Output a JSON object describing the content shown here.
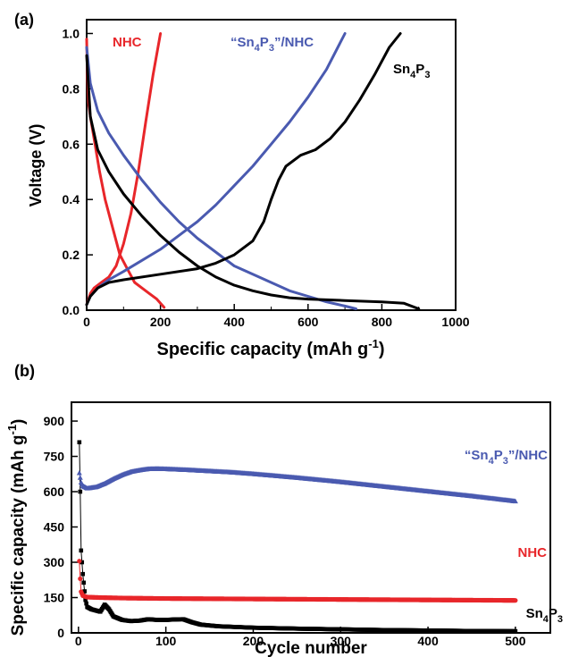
{
  "chart_data": [
    {
      "type": "line",
      "panel_label": "(a)",
      "xlabel": "Specific capacity (mAh g",
      "xlabel_sup": "-1",
      "xlabel_end": ")",
      "ylabel": "Voltage (V)",
      "xlim": [
        0,
        1000
      ],
      "ylim": [
        0,
        1.05
      ],
      "x_ticks": [
        "0",
        "200",
        "400",
        "600",
        "800",
        "1000"
      ],
      "x_tick_values": [
        0,
        200,
        400,
        600,
        800,
        1000
      ],
      "y_ticks": [
        "0.0",
        "0.2",
        "0.4",
        "0.6",
        "0.8",
        "1.0"
      ],
      "y_tick_values": [
        0,
        0.2,
        0.4,
        0.6,
        0.8,
        1.0
      ],
      "series": [
        {
          "name": "NHC",
          "label_parts": [
            {
              "t": "NHC"
            }
          ],
          "color": "#e8262a",
          "curves": [
            {
              "x": [
                0,
                2,
                5,
                10,
                20,
                35,
                50,
                70,
                90,
                110,
                130,
                150,
                170,
                190,
                210
              ],
              "y": [
                0.98,
                0.85,
                0.75,
                0.7,
                0.62,
                0.5,
                0.4,
                0.3,
                0.2,
                0.15,
                0.1,
                0.08,
                0.06,
                0.04,
                0.01
              ]
            },
            {
              "x": [
                0,
                5,
                10,
                20,
                40,
                60,
                80,
                100,
                120,
                140,
                160,
                180,
                200
              ],
              "y": [
                0.02,
                0.04,
                0.06,
                0.08,
                0.1,
                0.12,
                0.16,
                0.24,
                0.35,
                0.5,
                0.68,
                0.85,
                1.0
              ]
            }
          ]
        },
        {
          "name": "“Sn4P3”/NHC",
          "label_parts": [
            {
              "t": "“Sn"
            },
            {
              "t": "4",
              "sub": true
            },
            {
              "t": "P"
            },
            {
              "t": "3",
              "sub": true
            },
            {
              "t": "”/NHC"
            }
          ],
          "color": "#4a5ab0",
          "curves": [
            {
              "x": [
                0,
                10,
                30,
                60,
                100,
                150,
                200,
                250,
                300,
                350,
                400,
                450,
                500,
                550,
                600,
                650,
                700,
                730
              ],
              "y": [
                0.95,
                0.82,
                0.72,
                0.64,
                0.56,
                0.47,
                0.39,
                0.32,
                0.26,
                0.21,
                0.16,
                0.13,
                0.1,
                0.07,
                0.05,
                0.03,
                0.015,
                0.005
              ]
            },
            {
              "x": [
                0,
                10,
                30,
                60,
                100,
                150,
                200,
                250,
                300,
                350,
                400,
                450,
                500,
                550,
                600,
                650,
                700
              ],
              "y": [
                0.02,
                0.05,
                0.08,
                0.11,
                0.14,
                0.18,
                0.22,
                0.27,
                0.32,
                0.38,
                0.45,
                0.52,
                0.6,
                0.68,
                0.77,
                0.87,
                1.0
              ]
            }
          ]
        },
        {
          "name": "Sn4P3",
          "label_parts": [
            {
              "t": "Sn"
            },
            {
              "t": "4",
              "sub": true
            },
            {
              "t": "P"
            },
            {
              "t": "3",
              "sub": true
            }
          ],
          "color": "#000000",
          "curves": [
            {
              "x": [
                0,
                10,
                30,
                60,
                100,
                150,
                200,
                250,
                300,
                350,
                400,
                450,
                500,
                550,
                600,
                700,
                800,
                860,
                900
              ],
              "y": [
                0.92,
                0.7,
                0.58,
                0.5,
                0.42,
                0.34,
                0.27,
                0.21,
                0.16,
                0.12,
                0.09,
                0.07,
                0.055,
                0.045,
                0.04,
                0.035,
                0.03,
                0.025,
                0.005
              ]
            },
            {
              "x": [
                0,
                10,
                30,
                60,
                100,
                200,
                300,
                350,
                400,
                450,
                480,
                500,
                520,
                540,
                580,
                620,
                660,
                700,
                740,
                780,
                820,
                850
              ],
              "y": [
                0.02,
                0.05,
                0.08,
                0.1,
                0.11,
                0.13,
                0.15,
                0.17,
                0.2,
                0.25,
                0.32,
                0.4,
                0.47,
                0.52,
                0.56,
                0.58,
                0.62,
                0.68,
                0.76,
                0.85,
                0.95,
                1.0
              ]
            }
          ]
        }
      ]
    },
    {
      "type": "scatter",
      "panel_label": "(b)",
      "xlabel": "Cycle number",
      "ylabel": "Specific capacity (mAh g",
      "ylabel_sup": "-1",
      "ylabel_end": ")",
      "xlim": [
        -8,
        540
      ],
      "ylim": [
        0,
        980
      ],
      "x_ticks": [
        "0",
        "100",
        "200",
        "300",
        "400",
        "500"
      ],
      "x_tick_values": [
        0,
        100,
        200,
        300,
        400,
        500
      ],
      "y_ticks": [
        "0",
        "150",
        "300",
        "450",
        "600",
        "750",
        "900"
      ],
      "y_tick_values": [
        0,
        150,
        300,
        450,
        600,
        750,
        900
      ],
      "series": [
        {
          "name": "“Sn4P3”/NHC",
          "label_parts": [
            {
              "t": "“Sn"
            },
            {
              "t": "4",
              "sub": true
            },
            {
              "t": "P"
            },
            {
              "t": "3",
              "sub": true
            },
            {
              "t": "”/NHC"
            }
          ],
          "color": "#4a5ab0",
          "marker": "triangle",
          "x": [
            1,
            2,
            3,
            5,
            10,
            20,
            30,
            40,
            50,
            60,
            70,
            80,
            90,
            100,
            125,
            150,
            175,
            200,
            250,
            300,
            350,
            400,
            450,
            500
          ],
          "y": [
            680,
            660,
            640,
            625,
            615,
            620,
            635,
            655,
            672,
            685,
            692,
            697,
            698,
            697,
            693,
            688,
            683,
            676,
            660,
            642,
            622,
            602,
            582,
            560
          ]
        },
        {
          "name": "NHC",
          "label_parts": [
            {
              "t": "NHC"
            }
          ],
          "color": "#e8262a",
          "marker": "circle",
          "x": [
            1,
            2,
            3,
            5,
            10,
            25,
            50,
            100,
            150,
            200,
            250,
            300,
            350,
            400,
            450,
            500
          ],
          "y": [
            305,
            230,
            175,
            158,
            152,
            150,
            148,
            146,
            145,
            144,
            143,
            142,
            141,
            140,
            139,
            138
          ]
        },
        {
          "name": "Sn4P3",
          "label_parts": [
            {
              "t": "Sn"
            },
            {
              "t": "4",
              "sub": true
            },
            {
              "t": "P"
            },
            {
              "t": "3",
              "sub": true
            }
          ],
          "color": "#000000",
          "marker": "square",
          "x": [
            1,
            2,
            3,
            5,
            8,
            10,
            15,
            20,
            25,
            30,
            35,
            40,
            50,
            60,
            70,
            80,
            90,
            100,
            110,
            120,
            130,
            140,
            160,
            180,
            200,
            250,
            300,
            350,
            400,
            450,
            500
          ],
          "y": [
            810,
            600,
            350,
            250,
            140,
            110,
            100,
            95,
            90,
            120,
            100,
            70,
            55,
            50,
            52,
            58,
            55,
            55,
            57,
            58,
            45,
            35,
            28,
            25,
            22,
            18,
            15,
            12,
            10,
            8,
            7
          ]
        }
      ]
    }
  ]
}
